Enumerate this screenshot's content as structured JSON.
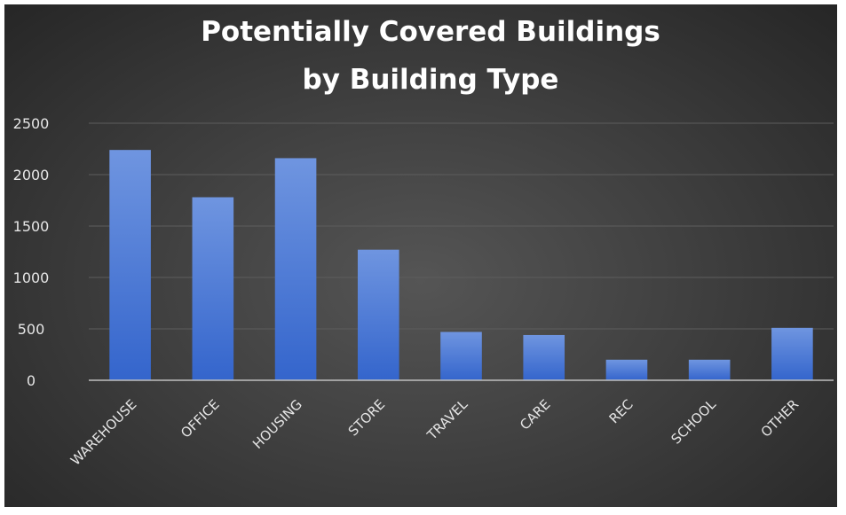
{
  "chart_data": {
    "type": "bar",
    "title": [
      "Potentially Covered Buildings",
      "by Building Type"
    ],
    "categories": [
      "WAREHOUSE",
      "OFFICE",
      "HOUSING",
      "STORE",
      "TRAVEL",
      "CARE",
      "REC",
      "SCHOOL",
      "OTHER"
    ],
    "values": [
      2240,
      1780,
      2160,
      1270,
      470,
      440,
      200,
      200,
      510
    ],
    "ylim": [
      0,
      2500
    ],
    "yticks": [
      0,
      500,
      1000,
      1500,
      2000,
      2500
    ],
    "grid": true,
    "legend": "none",
    "colors": {
      "bar_top": "#6f95e0",
      "bar_bottom": "#3465cc",
      "gridline": "#5d5d5d",
      "axis": "#bfbfbf"
    }
  }
}
